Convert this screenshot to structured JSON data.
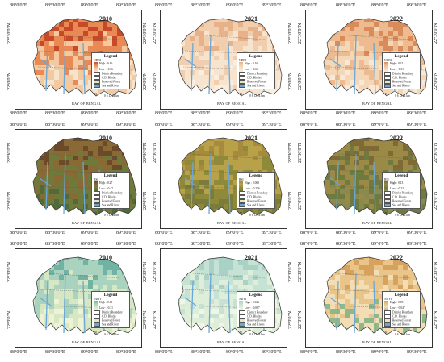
{
  "axes": {
    "lon_ticks": [
      "88°0'0\"E",
      "88°30'0\"E",
      "89°0'0\"E",
      "89°30'0\"E"
    ],
    "lat_ticks": [
      "22°0'0\"N",
      "22°30'0\"N"
    ]
  },
  "sea_label": "BAY OF BENGAL",
  "scale_label": "0  6  12     24 km",
  "north_label": "N",
  "legend_common": {
    "title": "Legend",
    "items": [
      "District Boundary",
      "C.D. Blocks",
      "Reserved Forest",
      "Sea and Rivers"
    ]
  },
  "rows": [
    {
      "index": "NDBI",
      "panels": [
        {
          "year": "2010",
          "high": "High : 0.46",
          "low": "Low : -0.66"
        },
        {
          "year": "2021",
          "high": "High : 0.16",
          "low": "Low : -0.60"
        },
        {
          "year": "2022",
          "high": "High : 0.21",
          "low": "Low : -0.31"
        }
      ]
    },
    {
      "index": "BSI",
      "panels": [
        {
          "year": "2010",
          "high": "High : 0.27",
          "low": "Low : -0.47"
        },
        {
          "year": "2021",
          "high": "High : 0.068",
          "low": "Low : -0.256"
        },
        {
          "year": "2022",
          "high": "High : 0.13",
          "low": "Low : -0.22"
        }
      ]
    },
    {
      "index": "NDVI",
      "panels": [
        {
          "year": "2010",
          "high": "High : 0.10",
          "low": "Low : -0.31"
        },
        {
          "year": "2021",
          "high": "High : 0.026",
          "low": "Low : -0.067"
        },
        {
          "year": "2022",
          "high": "High : 0.091",
          "low": "Low : -0.047"
        }
      ]
    }
  ],
  "colors": {
    "sea": "#6aa7d6",
    "forest": "#e8e4c8",
    "ndbi_2010": [
      "#c64a2a",
      "#e98a55",
      "#f2c9a0",
      "#f6e3cc"
    ],
    "ndbi_2021": [
      "#e7b189",
      "#f1cfae",
      "#f7e4cf",
      "#faeee0"
    ],
    "ndbi_2022": [
      "#d98b5a",
      "#edbb8f",
      "#f4d7b6",
      "#f8e8d5"
    ],
    "bsi_2010": [
      "#6b4a2a",
      "#8a6a34",
      "#6f7a3a",
      "#4f6b3a"
    ],
    "bsi_2021": [
      "#a78b3c",
      "#b9a14a",
      "#8f8a3a",
      "#7b7b3c"
    ],
    "bsi_2022": [
      "#7f6a35",
      "#9a8a45",
      "#6e7a40",
      "#8a8a50"
    ],
    "ndvi_2010": [
      "#6fb3a4",
      "#a9d2bf",
      "#d7e7c3",
      "#eef3d6"
    ],
    "ndvi_2021": [
      "#a7d2c5",
      "#c6e2d4",
      "#dfeed9",
      "#eef6e4"
    ],
    "ndvi_2022": [
      "#d6a25e",
      "#e9c58a",
      "#f3ddb4",
      "#8fb78a"
    ]
  }
}
